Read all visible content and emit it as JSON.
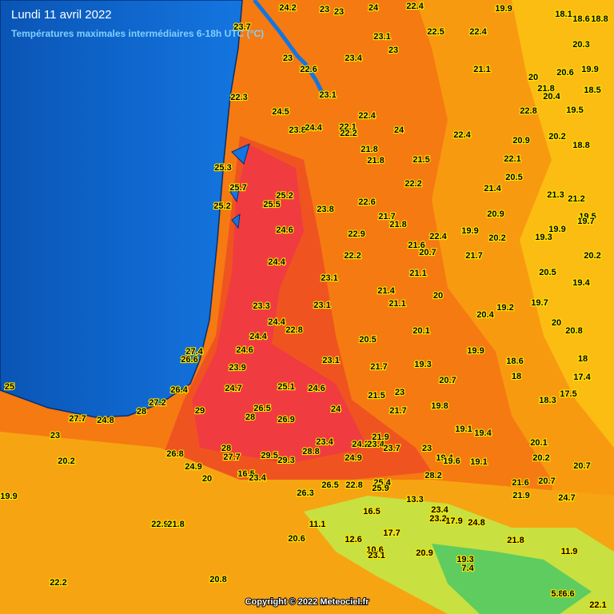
{
  "header": {
    "title": "Lundi 11 avril 2022",
    "subtitle": "Températures maximales intermédiaires 6-18h UTC (°C)"
  },
  "footer": {
    "copyright": "Copyright © 2022 Meteociel.fr"
  },
  "labels": [
    "24.2",
    "23",
    "23",
    "24",
    "22.4",
    "19.9",
    "18.1",
    "18.6",
    "18.8",
    "23.7",
    "23.1",
    "22.5",
    "22.4",
    "20.3",
    "23",
    "22.6",
    "23.4",
    "23",
    "21.1",
    "20",
    "20.6",
    "19.9",
    "22.3",
    "23.1",
    "21.8",
    "20.4",
    "18.5",
    "24.5",
    "22.4",
    "22.8",
    "19.5",
    "23.8",
    "24.4",
    "22.1",
    "22.2",
    "24",
    "22.4",
    "20.9",
    "20.2",
    "18.8",
    "21.8",
    "21.8",
    "21.5",
    "22.1",
    "25.3",
    "20.5",
    "22.2",
    "21.4",
    "21.3",
    "21.2",
    "25.7",
    "25.2",
    "25.2",
    "25.5",
    "22.6",
    "23.8",
    "21.7",
    "21.8",
    "20.9",
    "19.5",
    "19.7",
    "24.6",
    "22.9",
    "22.4",
    "19.9",
    "20.2",
    "19.3",
    "19.9",
    "21.6",
    "20.7",
    "21.7",
    "22.2",
    "20.2",
    "24.4",
    "21.1",
    "20.5",
    "23.1",
    "19.4",
    "21.4",
    "20",
    "21.1",
    "19.2",
    "19.7",
    "23.3",
    "23.1",
    "20.4",
    "24.4",
    "22.8",
    "20.1",
    "20",
    "20.8",
    "24.4",
    "20.5",
    "27.4",
    "24.6",
    "19.9",
    "26.6",
    "23.1",
    "18.6",
    "18",
    "23.9",
    "21.7",
    "19.3",
    "18",
    "17.4",
    "20.7",
    "25",
    "25.1",
    "24.6",
    "24.7",
    "26.4",
    "21.5",
    "23",
    "17.5",
    "18.3",
    "27.2",
    "19.8",
    "26.5",
    "24",
    "21.7",
    "28",
    "29",
    "28",
    "26.9",
    "27.7",
    "24.8",
    "23",
    "19.1",
    "19.4",
    "21.9",
    "23.4",
    "24.2",
    "23.4",
    "23.7",
    "23",
    "20.1",
    "28",
    "28.8",
    "26.8",
    "27.7",
    "29.5",
    "29.3",
    "24.9",
    "19.4",
    "19.6",
    "19.1",
    "20.2",
    "20.7",
    "20.2",
    "24.9",
    "16.5",
    "23.4",
    "20",
    "28.2",
    "21.6",
    "20.7",
    "26.5",
    "22.8",
    "25.4",
    "25.9",
    "26.3",
    "13.3",
    "19.9",
    "21.9",
    "24.7",
    "23.4",
    "16.5",
    "23.2",
    "17.9",
    "24.8",
    "22.9",
    "21.8",
    "11.1",
    "17.7",
    "20.6",
    "12.6",
    "21.8",
    "10.6",
    "23.1",
    "20.9",
    "11.9",
    "19.3",
    "7.4",
    "20.8",
    "22.2",
    "5.8",
    "6.6",
    "22.1"
  ]
}
